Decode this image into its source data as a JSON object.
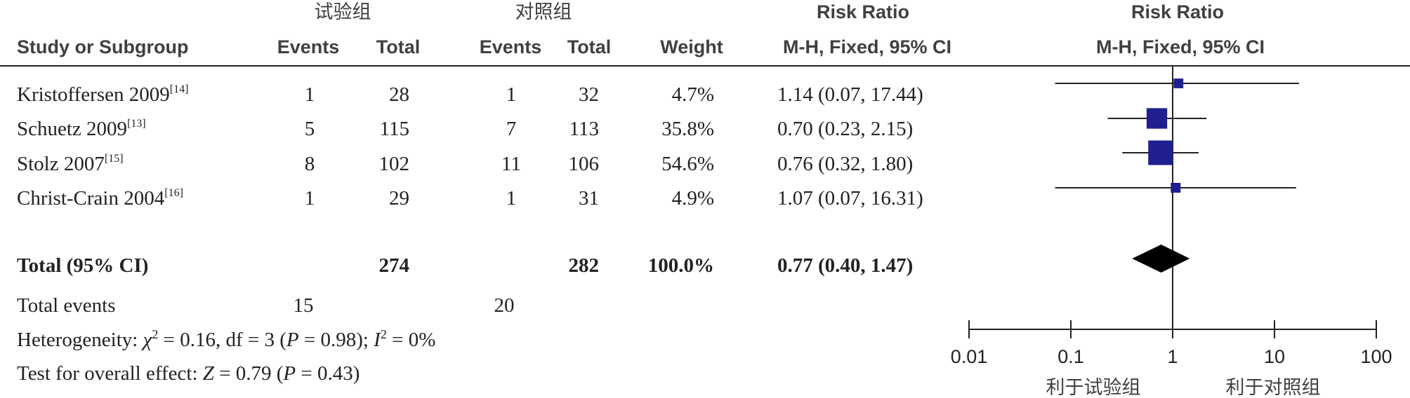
{
  "header": {
    "group_exp": "试验组",
    "group_ctrl": "对照组",
    "rr_title": "Risk Ratio",
    "plot_title": "Risk Ratio",
    "col_study": "Study or Subgroup",
    "col_events_exp": "Events",
    "col_total_exp": "Total",
    "col_events_ctrl": "Events",
    "col_total_ctrl": "Total",
    "col_weight": "Weight",
    "col_ci": "M-H, Fixed, 95% CI",
    "plot_method": "M-H, Fixed, 95% CI"
  },
  "chart_data": {
    "type": "forest",
    "axis_scale": "log",
    "xlim": [
      0.01,
      100
    ],
    "ticks": [
      "0.01",
      "0.1",
      "1",
      "10",
      "100"
    ],
    "tick_values": [
      0.01,
      0.1,
      1,
      10,
      100
    ],
    "null_line": 1,
    "marker_color": "#1f1f8f",
    "favours_left": "利于试验组",
    "favours_right": "利于对照组",
    "studies": [
      {
        "name": "Kristoffersen 2009",
        "ref": "[14]",
        "events_exp": "1",
        "total_exp": "28",
        "events_ctrl": "1",
        "total_ctrl": "32",
        "weight_label": "4.7%",
        "weight": 4.7,
        "ci_label": "1.14 (0.07, 17.44)",
        "rr": 1.14,
        "lo": 0.07,
        "hi": 17.44
      },
      {
        "name": "Schuetz 2009",
        "ref": "[13]",
        "events_exp": "5",
        "total_exp": "115",
        "events_ctrl": "7",
        "total_ctrl": "113",
        "weight_label": "35.8%",
        "weight": 35.8,
        "ci_label": "0.70 (0.23, 2.15)",
        "rr": 0.7,
        "lo": 0.23,
        "hi": 2.15
      },
      {
        "name": "Stolz 2007",
        "ref": "[15]",
        "events_exp": "8",
        "total_exp": "102",
        "events_ctrl": "11",
        "total_ctrl": "106",
        "weight_label": "54.6%",
        "weight": 54.6,
        "ci_label": "0.76 (0.32, 1.80)",
        "rr": 0.76,
        "lo": 0.32,
        "hi": 1.8
      },
      {
        "name": "Christ-Crain 2004",
        "ref": "[16]",
        "events_exp": "1",
        "total_exp": "29",
        "events_ctrl": "1",
        "total_ctrl": "31",
        "weight_label": "4.9%",
        "weight": 4.9,
        "ci_label": "1.07 (0.07, 16.31)",
        "rr": 1.07,
        "lo": 0.07,
        "hi": 16.31
      }
    ],
    "total": {
      "label": "Total (95% CI)",
      "total_exp": "274",
      "total_ctrl": "282",
      "weight_label": "100.0%",
      "ci_label": "0.77 (0.40, 1.47)",
      "rr": 0.77,
      "lo": 0.4,
      "hi": 1.47
    },
    "total_events": {
      "label": "Total events",
      "exp": "15",
      "ctrl": "20"
    },
    "heterogeneity": {
      "label": "Heterogeneity: ",
      "chi_sym": "χ",
      "sq": "2",
      "chi_val": " = 0.16, df = 3 (",
      "p_sym": "P",
      "p_val": " = 0.98); ",
      "i_sym": "I",
      "i_sq": "2",
      "i_val": " = 0%"
    },
    "overall": {
      "label": "Test for overall effect: ",
      "z_sym": "Z",
      "z_val": " = 0.79 (",
      "p_sym": "P",
      "p_val": " = 0.43)"
    }
  }
}
